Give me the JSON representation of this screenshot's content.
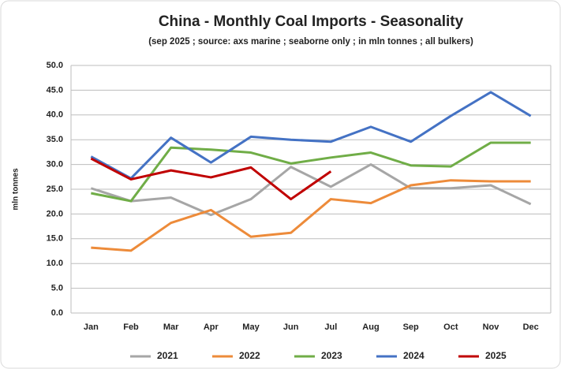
{
  "chart_data": {
    "type": "line",
    "title": "China - Monthly Coal Imports - Seasonality",
    "subtitle": "(sep 2025 ; source: axs marine ; seaborne only ; in mln tonnes ; all bulkers)",
    "y_label": "mln tonnes",
    "categories": [
      "Jan",
      "Feb",
      "Mar",
      "Apr",
      "May",
      "Jun",
      "Jul",
      "Aug",
      "Sep",
      "Oct",
      "Nov",
      "Dec"
    ],
    "series": [
      {
        "name": "2021",
        "color": "#a6a6a6",
        "values": [
          25.2,
          22.6,
          23.3,
          19.8,
          23.0,
          29.5,
          25.5,
          30.0,
          25.2,
          25.2,
          25.8,
          22.0
        ]
      },
      {
        "name": "2022",
        "color": "#ed8b3a",
        "values": [
          13.2,
          12.6,
          18.2,
          20.8,
          15.4,
          16.2,
          23.0,
          22.2,
          25.8,
          26.8,
          26.6,
          26.6
        ]
      },
      {
        "name": "2023",
        "color": "#70ad47",
        "values": [
          24.2,
          22.6,
          33.4,
          33.0,
          32.4,
          30.2,
          31.4,
          32.4,
          29.8,
          29.6,
          34.4,
          34.4
        ]
      },
      {
        "name": "2024",
        "color": "#4472c4",
        "values": [
          31.6,
          27.2,
          35.4,
          30.4,
          35.6,
          35.0,
          34.6,
          37.6,
          34.6,
          39.8,
          44.6,
          39.8
        ]
      },
      {
        "name": "2025",
        "color": "#c00000",
        "values": [
          31.2,
          27.0,
          28.8,
          27.4,
          29.4,
          23.0,
          28.6,
          null,
          null,
          null,
          null,
          null
        ]
      }
    ],
    "ylim": [
      0,
      50
    ],
    "yticks": [
      {
        "value": 0,
        "label": "0.0"
      },
      {
        "value": 5,
        "label": "5.0"
      },
      {
        "value": 10,
        "label": "10.0"
      },
      {
        "value": 15,
        "label": "15.0"
      },
      {
        "value": 20,
        "label": "20.0"
      },
      {
        "value": 25,
        "label": "25.0"
      },
      {
        "value": 30,
        "label": "30.0"
      },
      {
        "value": 35,
        "label": "35.0"
      },
      {
        "value": 40,
        "label": "40.0"
      },
      {
        "value": 45,
        "label": "45.0"
      },
      {
        "value": 50,
        "label": "50.0"
      }
    ],
    "grid": true,
    "legend": "bottom"
  }
}
